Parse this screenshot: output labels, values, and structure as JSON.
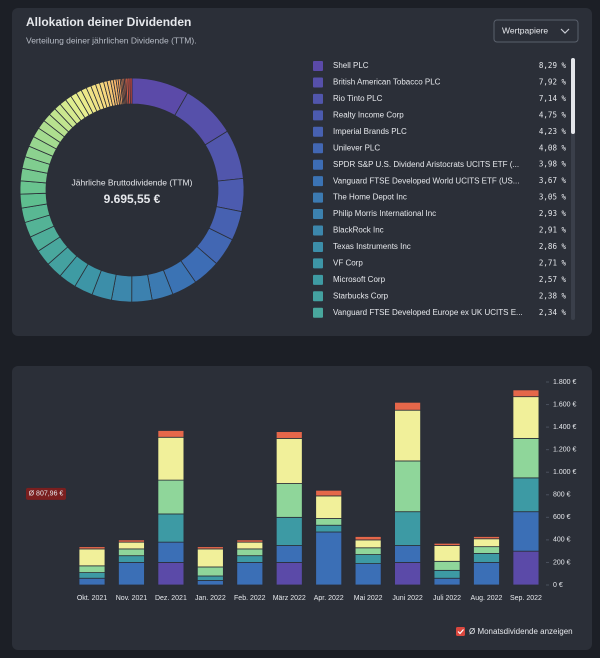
{
  "panel": {
    "title": "Allokation deiner Dividenden",
    "subtitle": "Verteilung deiner jährlichen Dividende (TTM).",
    "dropdown": "Wertpapiere"
  },
  "chart_data": [
    {
      "type": "donut",
      "center_label": "Jährliche Bruttodividende (TTM)",
      "center_value": "9.695,55 €",
      "color_scale": [
        "#5b4aa8",
        "#3b6fb6",
        "#3d9aa4",
        "#5fbf8f",
        "#a9dd8f",
        "#e7ef8f",
        "#f8d77e",
        "#f29a5c",
        "#d9473e"
      ],
      "categories": [
        "Shell PLC",
        "British American Tobacco PLC",
        "Rio Tinto PLC",
        "Realty Income Corp",
        "Imperial Brands PLC",
        "Unilever PLC",
        "SPDR S&P U.S. Dividend Aristocrats UCITS ETF (...",
        "Vanguard FTSE Developed World UCITS ETF (US...",
        "The Home Depot Inc",
        "Philip Morris International Inc",
        "BlackRock Inc",
        "Texas Instruments Inc",
        "VF Corp",
        "Microsoft Corp",
        "Starbucks Corp",
        "Vanguard FTSE Developed Europe ex UK UCITS E...",
        null,
        null,
        null,
        null,
        null,
        null,
        null,
        null,
        null,
        null,
        null,
        null,
        null,
        null,
        null,
        null,
        null,
        null,
        null,
        null,
        null,
        null,
        null,
        null,
        null,
        null,
        null,
        null,
        null,
        null,
        null,
        null,
        null,
        null,
        null,
        null
      ],
      "values": [
        8.29,
        7.92,
        7.14,
        4.75,
        4.23,
        4.08,
        3.98,
        3.67,
        3.05,
        2.93,
        2.91,
        2.86,
        2.71,
        2.57,
        2.38,
        2.34,
        2.3,
        2.2,
        2.1,
        2.0,
        1.9,
        1.8,
        1.7,
        1.6,
        1.5,
        1.4,
        1.3,
        1.2,
        1.1,
        1.0,
        1.0,
        0.9,
        0.9,
        0.8,
        0.8,
        0.7,
        0.7,
        0.6,
        0.6,
        0.5,
        0.5,
        0.4,
        0.4,
        0.3,
        0.3,
        0.2,
        0.2,
        0.2,
        0.2,
        0.3,
        0.3,
        0.29
      ],
      "value_labels": [
        "8,29 %",
        "7,92 %",
        "7,14 %",
        "4,75 %",
        "4,23 %",
        "4,08 %",
        "3,98 %",
        "3,67 %",
        "3,05 %",
        "2,93 %",
        "2,91 %",
        "2,86 %",
        "2,71 %",
        "2,57 %",
        "2,38 %",
        "2,34 %",
        null,
        null,
        null,
        null,
        null,
        null,
        null,
        null,
        null,
        null,
        null,
        null,
        null,
        null,
        null,
        null,
        null,
        null,
        null,
        null,
        null,
        null,
        null,
        null,
        null,
        null,
        null,
        null,
        null,
        null,
        null,
        null,
        null,
        null,
        null,
        null
      ]
    },
    {
      "type": "stacked_bar",
      "categories": [
        "Okt. 2021",
        "Nov. 2021",
        "Dez. 2021",
        "Jan. 2022",
        "Feb. 2022",
        "März 2022",
        "Apr. 2022",
        "Mai 2022",
        "Juni 2022",
        "Juli 2022",
        "Aug. 2022",
        "Sep. 2022"
      ],
      "series": [
        {
          "color": "#5b4aa8",
          "values": [
            0,
            0,
            200,
            0,
            0,
            200,
            0,
            0,
            200,
            0,
            0,
            300
          ]
        },
        {
          "color": "#3b6fb6",
          "values": [
            60,
            200,
            180,
            40,
            200,
            150,
            470,
            190,
            150,
            60,
            200,
            350
          ]
        },
        {
          "color": "#3d9aa4",
          "values": [
            50,
            60,
            250,
            40,
            60,
            250,
            60,
            80,
            300,
            70,
            80,
            300
          ]
        },
        {
          "color": "#8fd69a",
          "values": [
            60,
            60,
            300,
            80,
            60,
            300,
            60,
            60,
            450,
            80,
            60,
            350
          ]
        },
        {
          "color": "#f1f09a",
          "values": [
            150,
            60,
            380,
            160,
            60,
            400,
            200,
            70,
            450,
            140,
            70,
            370
          ]
        },
        {
          "color": "#e5674a",
          "values": [
            20,
            20,
            60,
            20,
            20,
            60,
            50,
            30,
            70,
            20,
            20,
            60
          ]
        }
      ],
      "ylim": [
        0,
        1800
      ],
      "yticks": [
        {
          "value": 0,
          "label": "0 €"
        },
        {
          "value": 200,
          "label": "200 €"
        },
        {
          "value": 400,
          "label": "400 €"
        },
        {
          "value": 600,
          "label": "600 €"
        },
        {
          "value": 800,
          "label": "800 €"
        },
        {
          "value": 1000,
          "label": "1.000 €"
        },
        {
          "value": 1200,
          "label": "1.200 €"
        },
        {
          "value": 1400,
          "label": "1.400 €"
        },
        {
          "value": 1600,
          "label": "1.600 €"
        },
        {
          "value": 1800,
          "label": "1.800 €"
        }
      ],
      "average": 807.96,
      "average_label": "Ø 807,96 €",
      "toggle_label": "Ø Monatsdividende anzeigen"
    }
  ]
}
